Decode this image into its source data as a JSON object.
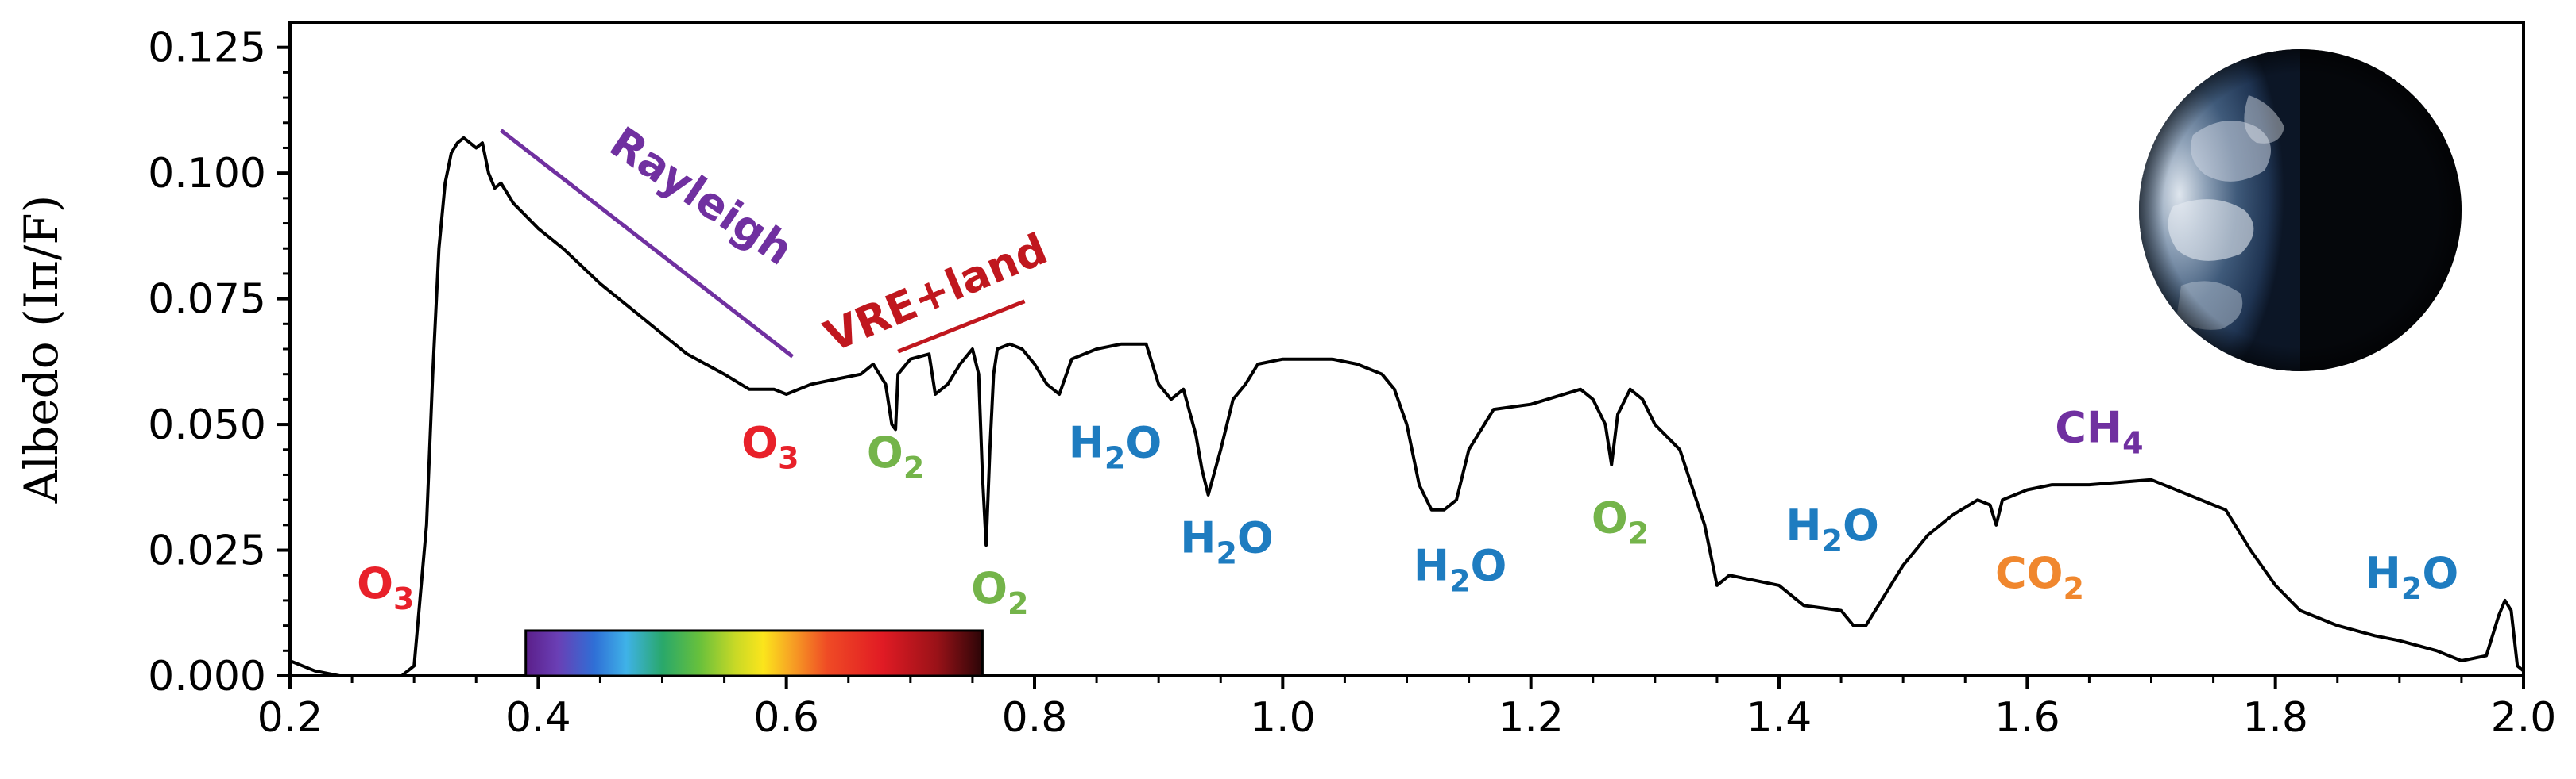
{
  "chart_data": {
    "type": "line",
    "title": "",
    "xlabel": "",
    "ylabel": "Albedo (Iπ/F)",
    "xlim": [
      0.2,
      2.0
    ],
    "ylim": [
      0.0,
      0.13
    ],
    "grid": false,
    "xticks": [
      "0.2",
      "0.4",
      "0.6",
      "0.8",
      "1.0",
      "1.2",
      "1.4",
      "1.6",
      "1.8",
      "2.0"
    ],
    "yticks": [
      "0.000",
      "0.025",
      "0.050",
      "0.075",
      "0.100",
      "0.125"
    ],
    "series": [
      {
        "name": "",
        "color": "#000000",
        "x": [
          0.2,
          0.21,
          0.22,
          0.24,
          0.27,
          0.29,
          0.3,
          0.31,
          0.315,
          0.32,
          0.325,
          0.33,
          0.335,
          0.34,
          0.345,
          0.35,
          0.355,
          0.36,
          0.365,
          0.37,
          0.38,
          0.4,
          0.42,
          0.45,
          0.48,
          0.5,
          0.52,
          0.55,
          0.57,
          0.59,
          0.6,
          0.62,
          0.64,
          0.66,
          0.67,
          0.68,
          0.685,
          0.688,
          0.69,
          0.7,
          0.715,
          0.72,
          0.725,
          0.73,
          0.74,
          0.75,
          0.755,
          0.758,
          0.761,
          0.764,
          0.767,
          0.77,
          0.78,
          0.79,
          0.8,
          0.81,
          0.82,
          0.83,
          0.85,
          0.87,
          0.89,
          0.9,
          0.91,
          0.92,
          0.93,
          0.935,
          0.94,
          0.95,
          0.96,
          0.97,
          0.98,
          1.0,
          1.02,
          1.04,
          1.06,
          1.08,
          1.09,
          1.1,
          1.11,
          1.12,
          1.13,
          1.14,
          1.15,
          1.17,
          1.2,
          1.24,
          1.25,
          1.26,
          1.265,
          1.27,
          1.28,
          1.29,
          1.3,
          1.32,
          1.34,
          1.35,
          1.36,
          1.38,
          1.4,
          1.42,
          1.45,
          1.46,
          1.47,
          1.48,
          1.5,
          1.52,
          1.54,
          1.56,
          1.57,
          1.575,
          1.58,
          1.6,
          1.62,
          1.65,
          1.7,
          1.73,
          1.76,
          1.78,
          1.8,
          1.82,
          1.85,
          1.88,
          1.9,
          1.93,
          1.95,
          1.97,
          1.98,
          1.985,
          1.99,
          1.995,
          2.0
        ],
        "values": [
          0.003,
          0.002,
          0.001,
          0.0,
          0.0,
          0.0,
          0.002,
          0.03,
          0.06,
          0.085,
          0.098,
          0.104,
          0.106,
          0.107,
          0.106,
          0.105,
          0.106,
          0.1,
          0.097,
          0.098,
          0.094,
          0.089,
          0.085,
          0.078,
          0.072,
          0.068,
          0.064,
          0.06,
          0.057,
          0.057,
          0.056,
          0.058,
          0.059,
          0.06,
          0.062,
          0.058,
          0.05,
          0.049,
          0.06,
          0.063,
          0.064,
          0.056,
          0.057,
          0.058,
          0.062,
          0.065,
          0.06,
          0.04,
          0.026,
          0.045,
          0.06,
          0.065,
          0.066,
          0.065,
          0.062,
          0.058,
          0.056,
          0.063,
          0.065,
          0.066,
          0.066,
          0.058,
          0.055,
          0.057,
          0.048,
          0.041,
          0.036,
          0.045,
          0.055,
          0.058,
          0.062,
          0.063,
          0.063,
          0.063,
          0.062,
          0.06,
          0.057,
          0.05,
          0.038,
          0.033,
          0.033,
          0.035,
          0.045,
          0.053,
          0.054,
          0.057,
          0.055,
          0.05,
          0.042,
          0.052,
          0.057,
          0.055,
          0.05,
          0.045,
          0.03,
          0.018,
          0.02,
          0.019,
          0.018,
          0.014,
          0.013,
          0.01,
          0.01,
          0.014,
          0.022,
          0.028,
          0.032,
          0.035,
          0.034,
          0.03,
          0.035,
          0.037,
          0.038,
          0.038,
          0.039,
          0.036,
          0.033,
          0.025,
          0.018,
          0.013,
          0.01,
          0.008,
          0.007,
          0.005,
          0.003,
          0.004,
          0.012,
          0.015,
          0.013,
          0.002,
          0.001
        ]
      }
    ],
    "annotations": [
      {
        "main": "Rayleigh",
        "sub": "",
        "color": "#7030a0",
        "x": 0.525,
        "y": 0.093,
        "rotate": 34
      },
      {
        "main": "VRE+land",
        "sub": "",
        "color": "#c0171e",
        "x": 0.725,
        "y": 0.0735,
        "rotate": -23
      },
      {
        "main": "O",
        "sub": "3",
        "color": "#e8212a",
        "x": 0.587,
        "y": 0.0435,
        "rotate": 0
      },
      {
        "main": "O",
        "sub": "3",
        "color": "#e8212a",
        "x": 0.277,
        "y": 0.0155,
        "rotate": 0
      },
      {
        "main": "O",
        "sub": "2",
        "color": "#74b44a",
        "x": 0.688,
        "y": 0.0415,
        "rotate": 0
      },
      {
        "main": "O",
        "sub": "2",
        "color": "#74b44a",
        "x": 0.772,
        "y": 0.0145,
        "rotate": 0
      },
      {
        "main": "O",
        "sub": "2",
        "color": "#74b44a",
        "x": 1.272,
        "y": 0.0285,
        "rotate": 0
      },
      {
        "main": "H",
        "sub": "2",
        "tail": "O",
        "color": "#1e7cc0",
        "x": 0.865,
        "y": 0.0435,
        "rotate": 0
      },
      {
        "main": "H",
        "sub": "2",
        "tail": "O",
        "color": "#1e7cc0",
        "x": 0.955,
        "y": 0.0245,
        "rotate": 0
      },
      {
        "main": "H",
        "sub": "2",
        "tail": "O",
        "color": "#1e7cc0",
        "x": 1.143,
        "y": 0.019,
        "rotate": 0
      },
      {
        "main": "H",
        "sub": "2",
        "tail": "O",
        "color": "#1e7cc0",
        "x": 1.443,
        "y": 0.027,
        "rotate": 0
      },
      {
        "main": "H",
        "sub": "2",
        "tail": "O",
        "color": "#1e7cc0",
        "x": 1.91,
        "y": 0.0175,
        "rotate": 0
      },
      {
        "main": "CO",
        "sub": "2",
        "tail": "",
        "color": "#f0872e",
        "x": 1.61,
        "y": 0.0175,
        "rotate": 0
      },
      {
        "main": "CH",
        "sub": "4",
        "tail": "",
        "color": "#7030a0",
        "x": 1.658,
        "y": 0.0465,
        "rotate": 0
      }
    ],
    "lines": [
      {
        "name": "rayleigh-line",
        "color": "#7030a0",
        "x1": 0.37,
        "y1": 0.1085,
        "x2": 0.605,
        "y2": 0.0635
      },
      {
        "name": "vre-line",
        "color": "#c0171e",
        "x1": 0.69,
        "y1": 0.0645,
        "x2": 0.792,
        "y2": 0.0745
      }
    ],
    "color_bar": {
      "x_start": 0.39,
      "x_end": 0.758,
      "y_bottom": 0.0,
      "y_top": 0.009
    }
  }
}
